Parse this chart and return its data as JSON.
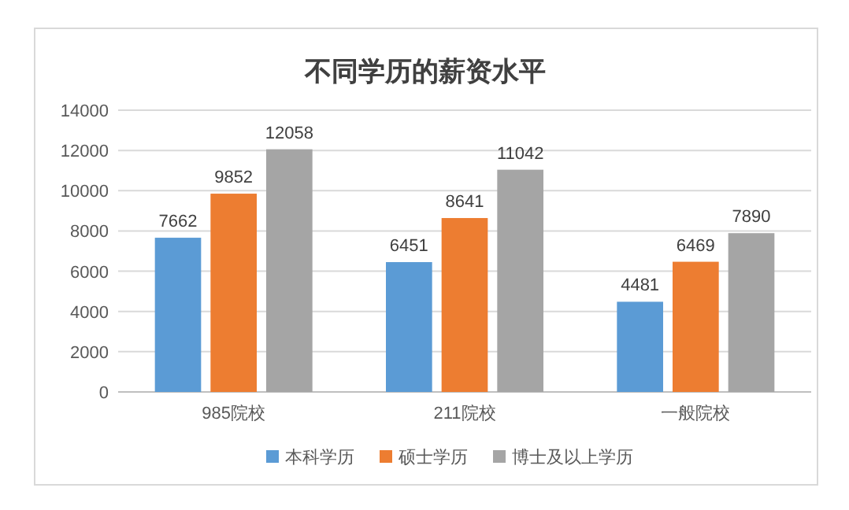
{
  "chart_data": {
    "type": "bar",
    "title": "不同学历的薪资水平",
    "categories": [
      "985院校",
      "211院校",
      "一般院校"
    ],
    "series": [
      {
        "name": "本科学历",
        "color": "#5b9bd5",
        "values": [
          7662,
          6451,
          4481
        ]
      },
      {
        "name": "硕士学历",
        "color": "#ed7d31",
        "values": [
          9852,
          8641,
          6469
        ]
      },
      {
        "name": "博士及以上学历",
        "color": "#a5a5a5",
        "values": [
          12058,
          11042,
          7890
        ]
      }
    ],
    "ylim": [
      0,
      14000
    ],
    "yticks": [
      0,
      2000,
      4000,
      6000,
      8000,
      10000,
      12000,
      14000
    ],
    "grid": "y",
    "legend": "bottom",
    "data_labels": true
  }
}
